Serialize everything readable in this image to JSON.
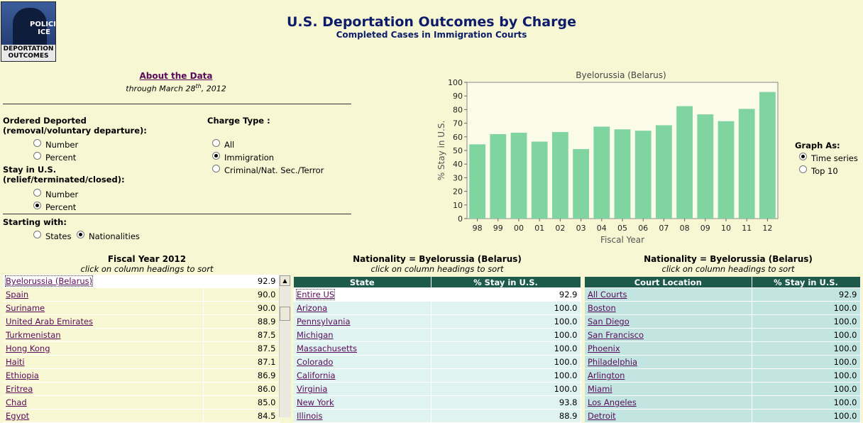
{
  "header": {
    "title": "U.S. Deportation Outcomes by Charge",
    "subtitle": "Completed Cases in Immigration Courts",
    "logo_text_top": "POLICE ICE",
    "logo_text_bottom_1": "DEPORTATION",
    "logo_text_bottom_2": "OUTCOMES"
  },
  "about": {
    "link": "About the Data",
    "through_pre": "through March 28",
    "through_sup": "th",
    "through_post": ", 2012"
  },
  "controls": {
    "ordered_deported_label": "Ordered Deported (removal/voluntary departure):",
    "od_number": "Number",
    "od_percent": "Percent",
    "stay_label": "Stay in U.S. (relief/terminated/closed):",
    "stay_number": "Number",
    "stay_percent": "Percent",
    "charge_type_label": "Charge Type :",
    "charge_all": "All",
    "charge_immigration": "Immigration",
    "charge_criminal": "Criminal/Nat. Sec./Terror",
    "starting_label": "Starting with:",
    "start_states": "States",
    "start_nationalities": "Nationalities",
    "graph_as_label": "Graph As:",
    "graph_time": "Time series",
    "graph_top10": "Top 10"
  },
  "chart_data": {
    "type": "bar",
    "title": "Byelorussia (Belarus)",
    "xlabel": "Fiscal Year",
    "ylabel": "% Stay in U.S.",
    "categories": [
      "98",
      "99",
      "00",
      "01",
      "02",
      "03",
      "04",
      "05",
      "06",
      "07",
      "08",
      "09",
      "10",
      "11",
      "12"
    ],
    "values": [
      54.5,
      62,
      63,
      56.5,
      63.5,
      51,
      67.5,
      65.5,
      64.5,
      68.5,
      82.5,
      76.5,
      71.5,
      80.5,
      92.9
    ],
    "ylim": [
      0,
      100
    ],
    "yticks": [
      0,
      10,
      20,
      30,
      40,
      50,
      60,
      70,
      80,
      90,
      100
    ],
    "grid": false,
    "bar_color": "#7fd4a0"
  },
  "table1": {
    "title": "Fiscal Year 2012",
    "subtitle": "click on column headings to sort",
    "rows": [
      {
        "name": "Byelorussia (Belarus)",
        "value": "92.9"
      },
      {
        "name": "Spain",
        "value": "90.0"
      },
      {
        "name": "Suriname",
        "value": "90.0"
      },
      {
        "name": "United Arab Emirates",
        "value": "88.9"
      },
      {
        "name": "Turkmenistan",
        "value": "87.5"
      },
      {
        "name": "Hong Kong",
        "value": "87.5"
      },
      {
        "name": "Haiti",
        "value": "87.1"
      },
      {
        "name": "Ethiopia",
        "value": "86.9"
      },
      {
        "name": "Eritrea",
        "value": "86.0"
      },
      {
        "name": "Chad",
        "value": "85.0"
      },
      {
        "name": "Egypt",
        "value": "84.5"
      }
    ]
  },
  "table2": {
    "title": "Nationality = Byelorussia (Belarus)",
    "subtitle": "click on column headings to sort",
    "col1": "State",
    "col2": "% Stay in U.S.",
    "rows": [
      {
        "name": "Entire US",
        "value": "92.9"
      },
      {
        "name": "Arizona",
        "value": "100.0"
      },
      {
        "name": "Pennsylvania",
        "value": "100.0"
      },
      {
        "name": "Michigan",
        "value": "100.0"
      },
      {
        "name": "Massachusetts",
        "value": "100.0"
      },
      {
        "name": "Colorado",
        "value": "100.0"
      },
      {
        "name": "California",
        "value": "100.0"
      },
      {
        "name": "Virginia",
        "value": "100.0"
      },
      {
        "name": "New York",
        "value": "93.8"
      },
      {
        "name": "Illinois",
        "value": "88.9"
      }
    ]
  },
  "table3": {
    "title": "Nationality = Byelorussia (Belarus)",
    "subtitle": "click on column headings to sort",
    "col1": "Court Location",
    "col2": "% Stay in U.S.",
    "rows": [
      {
        "name": "All Courts",
        "value": "92.9"
      },
      {
        "name": "Boston",
        "value": "100.0"
      },
      {
        "name": "San Diego",
        "value": "100.0"
      },
      {
        "name": "San Francisco",
        "value": "100.0"
      },
      {
        "name": "Phoenix",
        "value": "100.0"
      },
      {
        "name": "Philadelphia",
        "value": "100.0"
      },
      {
        "name": "Arlington",
        "value": "100.0"
      },
      {
        "name": "Miami",
        "value": "100.0"
      },
      {
        "name": "Los Angeles",
        "value": "100.0"
      },
      {
        "name": "Detroit",
        "value": "100.0"
      }
    ]
  }
}
